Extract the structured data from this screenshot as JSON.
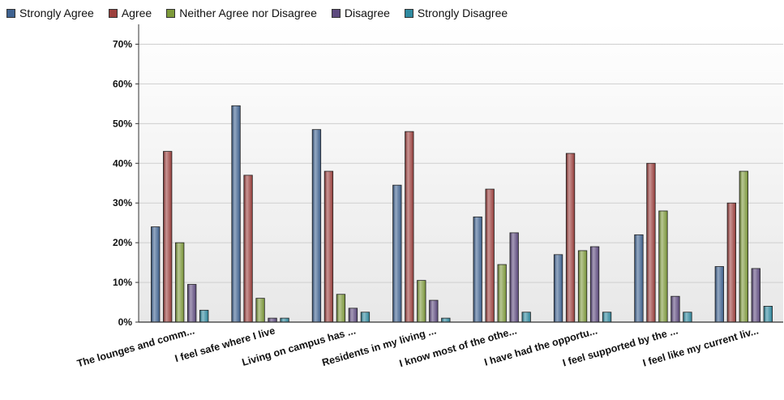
{
  "chart_data": {
    "type": "bar",
    "title": "",
    "xlabel": "",
    "ylabel": "",
    "ylim": [
      0,
      75
    ],
    "y_ticks": [
      "0%",
      "10%",
      "20%",
      "30%",
      "40%",
      "50%",
      "60%",
      "70%"
    ],
    "y_tick_values": [
      0,
      10,
      20,
      30,
      40,
      50,
      60,
      70
    ],
    "grid": true,
    "legend_position": "top-left",
    "categories": [
      "The lounges and comm...",
      "I feel safe where I live",
      "Living on campus has ...",
      "Residents in my living ...",
      "I know most of the othe...",
      "I have had the opportu...",
      "I feel supported by the ...",
      "I feel like my current liv..."
    ],
    "series": [
      {
        "name": "Strongly Agree",
        "color": "#3f6391",
        "values": [
          24,
          54.5,
          48.5,
          34.5,
          26.5,
          17,
          22,
          14
        ]
      },
      {
        "name": "Agree",
        "color": "#9c3f3c",
        "values": [
          43,
          37,
          38,
          48,
          33.5,
          42.5,
          40,
          30
        ]
      },
      {
        "name": "Neither Agree nor Disagree",
        "color": "#7d9a3a",
        "values": [
          20,
          6,
          7,
          10.5,
          14.5,
          18,
          28,
          38
        ]
      },
      {
        "name": "Disagree",
        "color": "#5d4a7e",
        "values": [
          9.5,
          1,
          3.5,
          5.5,
          22.5,
          19,
          6.5,
          13.5
        ]
      },
      {
        "name": "Strongly Disagree",
        "color": "#2f8aa0",
        "values": [
          3,
          1,
          2.5,
          1,
          2.5,
          2.5,
          2.5,
          4
        ]
      }
    ]
  }
}
